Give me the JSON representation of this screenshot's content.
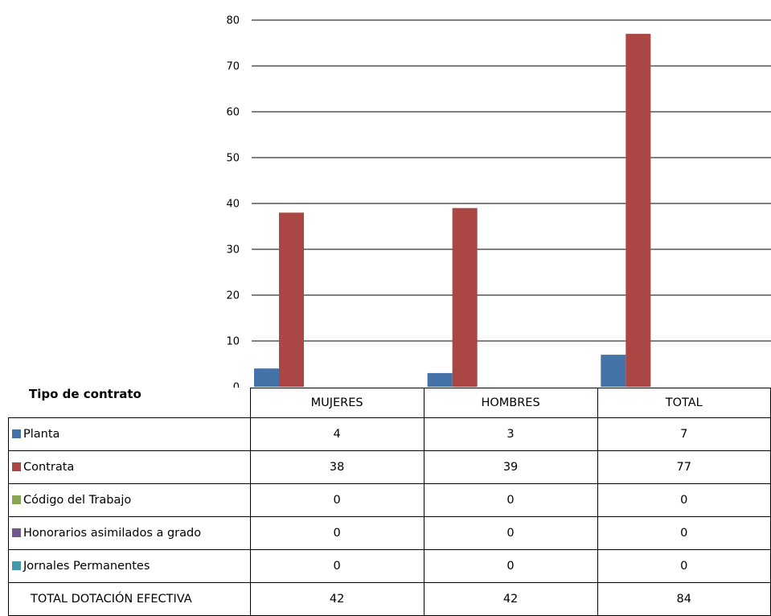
{
  "table_title": "Tipo de contrato",
  "chart_data": {
    "type": "bar",
    "categories": [
      "MUJERES",
      "HOMBRES",
      "TOTAL"
    ],
    "series": [
      {
        "name": "Planta",
        "color": "#4572a7",
        "values": [
          4,
          3,
          7
        ]
      },
      {
        "name": "Contrata",
        "color": "#aa4643",
        "values": [
          38,
          39,
          77
        ]
      },
      {
        "name": "Código del Trabajo",
        "color": "#89a54e",
        "values": [
          0,
          0,
          0
        ]
      },
      {
        "name": "Honorarios asimilados a grado",
        "color": "#71588f",
        "values": [
          0,
          0,
          0
        ]
      },
      {
        "name": "Jornales Permanentes",
        "color": "#4198af",
        "values": [
          0,
          0,
          0
        ]
      }
    ],
    "total_row": {
      "name": "TOTAL DOTACIÓN EFECTIVA",
      "values": [
        42,
        42,
        84
      ]
    },
    "y_ticks": [
      "0",
      "10",
      "20",
      "30",
      "40",
      "50",
      "60",
      "70",
      "80"
    ],
    "ylim": [
      0,
      80
    ],
    "grid": true,
    "legend": "data-table"
  }
}
